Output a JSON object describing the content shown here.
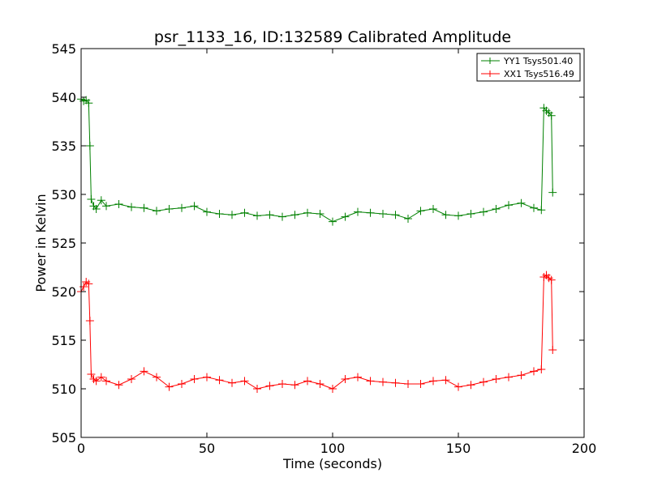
{
  "chart_data": {
    "type": "line",
    "title": "psr_1133_16, ID:132589 Calibrated Amplitude",
    "xlabel": "Time (seconds)",
    "ylabel": "Power in Kelvin",
    "xlim": [
      0,
      200
    ],
    "ylim": [
      505,
      545
    ],
    "xticks": [
      "0",
      "50",
      "100",
      "150",
      "200"
    ],
    "yticks": [
      "505",
      "510",
      "515",
      "520",
      "525",
      "530",
      "535",
      "540",
      "545"
    ],
    "grid": false,
    "legend_position": "top-right",
    "marker": "+",
    "series": [
      {
        "name": "YY1 Tsys501.40",
        "color": "#008000",
        "x": [
          0,
          1,
          2,
          3,
          3.5,
          4,
          5,
          6,
          8,
          10,
          15,
          20,
          25,
          30,
          35,
          40,
          45,
          50,
          55,
          60,
          65,
          70,
          75,
          80,
          85,
          90,
          95,
          100,
          105,
          110,
          115,
          120,
          125,
          130,
          135,
          140,
          145,
          150,
          155,
          160,
          165,
          170,
          175,
          180,
          183,
          184,
          185,
          186,
          187,
          187.5
        ],
        "y": [
          539.8,
          539.6,
          539.7,
          539.4,
          535.0,
          529.5,
          528.8,
          528.5,
          529.4,
          528.8,
          529.0,
          528.7,
          528.6,
          528.3,
          528.5,
          528.6,
          528.8,
          528.2,
          528.0,
          527.9,
          528.1,
          527.8,
          527.9,
          527.7,
          527.9,
          528.1,
          528.0,
          527.2,
          527.7,
          528.2,
          528.1,
          528.0,
          527.9,
          527.5,
          528.3,
          528.5,
          527.9,
          527.8,
          528.0,
          528.2,
          528.5,
          528.9,
          529.1,
          528.6,
          528.4,
          538.9,
          538.6,
          538.4,
          538.1,
          530.2
        ]
      },
      {
        "name": "XX1 Tsys516.49",
        "color": "#ff0000",
        "x": [
          0,
          1,
          2,
          3,
          3.5,
          4,
          5,
          6,
          8,
          10,
          15,
          20,
          25,
          30,
          35,
          40,
          45,
          50,
          55,
          60,
          65,
          70,
          75,
          80,
          85,
          90,
          95,
          100,
          105,
          110,
          115,
          120,
          125,
          130,
          135,
          140,
          145,
          150,
          155,
          160,
          165,
          170,
          175,
          180,
          183,
          184,
          185,
          186,
          187,
          187.5
        ],
        "y": [
          520.0,
          520.5,
          521.0,
          520.8,
          517.0,
          511.5,
          511.0,
          510.8,
          511.2,
          510.8,
          510.4,
          511.0,
          511.8,
          511.2,
          510.2,
          510.5,
          511.0,
          511.2,
          510.9,
          510.6,
          510.8,
          510.0,
          510.3,
          510.5,
          510.4,
          510.8,
          510.5,
          510.0,
          511.0,
          511.2,
          510.8,
          510.7,
          510.6,
          510.5,
          510.5,
          510.8,
          510.9,
          510.2,
          510.4,
          510.7,
          511.0,
          511.2,
          511.4,
          511.8,
          512.0,
          521.5,
          521.7,
          521.4,
          521.2,
          514.0
        ]
      }
    ]
  }
}
